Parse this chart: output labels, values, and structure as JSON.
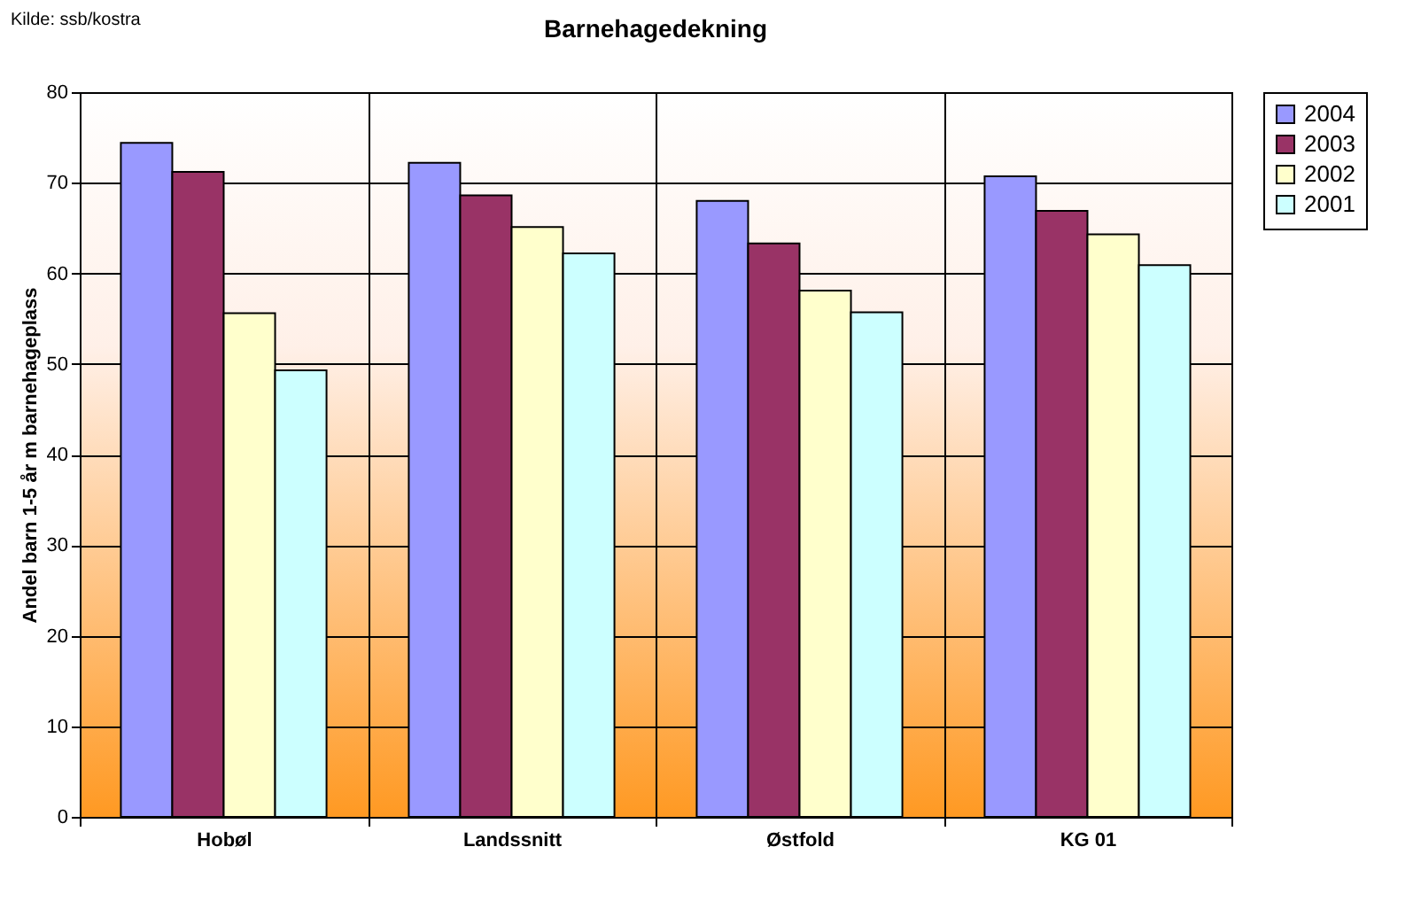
{
  "chart_data": {
    "type": "bar",
    "title": "Barnehagedekning",
    "ylabel": "Andel barn 1-5 år m barnehageplass",
    "annotations": [
      "Kilde: ssb/kostra"
    ],
    "categories": [
      "Hobøl",
      "Landssnitt",
      "Østfold",
      "KG 01"
    ],
    "series": [
      {
        "name": "2004",
        "color": "#9999ff",
        "values": [
          74.4,
          72.2,
          68.0,
          70.7
        ]
      },
      {
        "name": "2003",
        "color": "#993366",
        "values": [
          71.2,
          68.6,
          63.3,
          66.9
        ]
      },
      {
        "name": "2002",
        "color": "#ffffcc",
        "values": [
          55.6,
          65.1,
          58.1,
          64.3
        ]
      },
      {
        "name": "2001",
        "color": "#ccffff",
        "values": [
          49.3,
          62.2,
          55.7,
          60.9
        ]
      }
    ],
    "ylim": [
      0,
      80
    ],
    "yticks": [
      0,
      10,
      20,
      30,
      40,
      50,
      60,
      70,
      80
    ],
    "grid": true,
    "legend": "top right"
  }
}
